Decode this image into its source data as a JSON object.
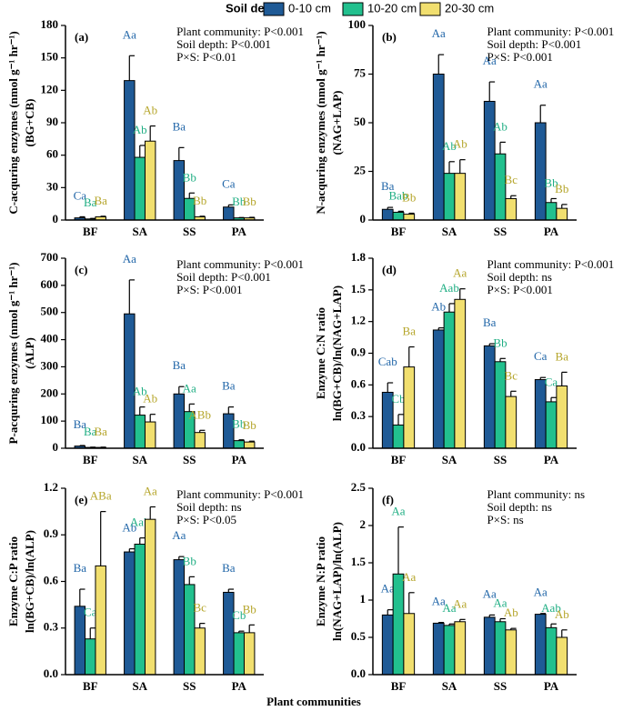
{
  "legend_title": "Soil depth",
  "xlabel": "Plant communities",
  "series": [
    {
      "name": "0-10 cm",
      "color": "#1f5a96",
      "label_color": "#2166a8"
    },
    {
      "name": "10-20 cm",
      "color": "#22c08e",
      "label_color": "#1fae83"
    },
    {
      "name": "20-30 cm",
      "color": "#f1df6f",
      "label_color": "#b5a52a"
    }
  ],
  "chart_data": [
    {
      "type": "bar",
      "panel": "(a)",
      "ylabel": [
        "C-acquring enzymes (nmol g⁻¹ hr⁻¹)",
        "(BG+CB)"
      ],
      "annotations": [
        "Plant community: P<0.001",
        "Soil depth: P<0.001",
        "P×S: P<0.01"
      ],
      "categories": [
        "BF",
        "SA",
        "SS",
        "PA"
      ],
      "ylim": [
        0,
        180
      ],
      "yticks": [
        0,
        30,
        60,
        90,
        120,
        150,
        180
      ],
      "series": [
        {
          "values": [
            2,
            129,
            55,
            12
          ],
          "errors": [
            1,
            23,
            12,
            2
          ],
          "labels": [
            "Ca",
            "Aa",
            "Ba",
            "Ca"
          ]
        },
        {
          "values": [
            1,
            58,
            20,
            2
          ],
          "errors": [
            0.5,
            11,
            5,
            0.3
          ],
          "labels": [
            "Ba",
            "Ab",
            "Bb",
            "Bb"
          ]
        },
        {
          "values": [
            3,
            73,
            3,
            2
          ],
          "errors": [
            0.5,
            14,
            0.5,
            0.5
          ],
          "labels": [
            "Ba",
            "Ab",
            "Bb",
            "Bb"
          ]
        }
      ]
    },
    {
      "type": "bar",
      "panel": "(b)",
      "ylabel": [
        "N-acquring enzymes (nmol g⁻¹ hr⁻¹)",
        "(NAG+LAP)"
      ],
      "annotations": [
        "Plant community: P<0.001",
        "Soil depth: P<0.001",
        "P×S: P<0.001"
      ],
      "categories": [
        "BF",
        "SA",
        "SS",
        "PA"
      ],
      "ylim": [
        0,
        100
      ],
      "yticks": [
        0,
        25,
        50,
        75,
        100
      ],
      "series": [
        {
          "values": [
            5.5,
            75,
            61,
            50
          ],
          "errors": [
            1,
            10,
            10,
            9
          ],
          "labels": [
            "Ba",
            "Aa",
            "Aa",
            "Aa"
          ]
        },
        {
          "values": [
            4,
            24,
            34,
            9
          ],
          "errors": [
            0.5,
            6,
            6,
            2
          ],
          "labels": [
            "Bab",
            "Ab",
            "Ab",
            "Bb"
          ]
        },
        {
          "values": [
            3,
            24,
            11,
            6
          ],
          "errors": [
            0.5,
            7,
            1.5,
            2
          ],
          "labels": [
            "Bb",
            "Ab",
            "Bc",
            "Bb"
          ]
        }
      ]
    },
    {
      "type": "bar",
      "panel": "(c)",
      "ylabel": [
        "P-acquring enzymes (nmol g⁻¹ hr⁻¹)",
        "(ALP)"
      ],
      "annotations": [
        "Plant community: P<0.001",
        "Soil depth: P<0.001",
        "P×S: P<0.001"
      ],
      "categories": [
        "BF",
        "SA",
        "SS",
        "PA"
      ],
      "ylim": [
        0,
        700
      ],
      "yticks": [
        0,
        100,
        200,
        300,
        400,
        500,
        600,
        700
      ],
      "series": [
        {
          "values": [
            8,
            495,
            200,
            127
          ],
          "errors": [
            2,
            125,
            27,
            25
          ],
          "labels": [
            "Ba",
            "Aa",
            "Ba",
            "Ba"
          ]
        },
        {
          "values": [
            3,
            122,
            135,
            28
          ],
          "errors": [
            1,
            30,
            28,
            3
          ],
          "labels": [
            "Ba",
            "Ab",
            "Aa",
            "Bb"
          ]
        },
        {
          "values": [
            3,
            97,
            58,
            23
          ],
          "errors": [
            1,
            28,
            8,
            3
          ],
          "labels": [
            "Ba",
            "Ab",
            "ABb",
            "Bb"
          ]
        }
      ]
    },
    {
      "type": "bar",
      "panel": "(d)",
      "ylabel": [
        "Enzyme C:N ratio",
        "ln(BG+CB)/ln(NAG+LAP)"
      ],
      "annotations": [
        "Plant community: P<0.001",
        "Soil depth: ns",
        "P×S: P<0.001"
      ],
      "categories": [
        "BF",
        "SA",
        "SS",
        "PA"
      ],
      "ylim": [
        0,
        1.8
      ],
      "yticks": [
        {
          "value": 0,
          "label": "0.0"
        },
        0.3,
        0.6,
        0.9,
        1.2,
        1.5,
        1.8
      ],
      "series": [
        {
          "values": [
            0.53,
            1.12,
            0.97,
            0.65
          ],
          "errors": [
            0.09,
            0.02,
            0.02,
            0.02
          ],
          "labels": [
            "Cab",
            "Ab",
            "Ba",
            "Ca"
          ]
        },
        {
          "values": [
            0.22,
            1.29,
            0.82,
            0.44
          ],
          "errors": [
            0.1,
            0.08,
            0.03,
            0.04
          ],
          "labels": [
            "Cb",
            "Aab",
            "Bb",
            "Ca"
          ]
        },
        {
          "values": [
            0.77,
            1.41,
            0.49,
            0.59
          ],
          "errors": [
            0.19,
            0.1,
            0.05,
            0.13
          ],
          "labels": [
            "Ba",
            "Aa",
            "Bc",
            "Ba"
          ]
        }
      ]
    },
    {
      "type": "bar",
      "panel": "(e)",
      "ylabel": [
        "Enzyme C:P ratio",
        "ln(BG+CB)/ln(ALP)"
      ],
      "annotations": [
        "Plant community: P<0.001",
        "Soil depth: ns",
        "P×S: P<0.05"
      ],
      "categories": [
        "BF",
        "SA",
        "SS",
        "PA"
      ],
      "ylim": [
        0,
        1.2
      ],
      "yticks": [
        {
          "value": 0,
          "label": "0.0"
        },
        0.3,
        0.6,
        0.9,
        1.2
      ],
      "series": [
        {
          "values": [
            0.44,
            0.79,
            0.74,
            0.53
          ],
          "errors": [
            0.11,
            0.02,
            0.02,
            0.02
          ],
          "labels": [
            "Ba",
            "Ab",
            "Aa",
            "Ba"
          ]
        },
        {
          "values": [
            0.23,
            0.84,
            0.58,
            0.27
          ],
          "errors": [
            0.07,
            0.04,
            0.05,
            0.01
          ],
          "labels": [
            "Ca",
            "Aab",
            "Bb",
            "Cb"
          ]
        },
        {
          "values": [
            0.7,
            1.0,
            0.3,
            0.27
          ],
          "errors": [
            0.35,
            0.08,
            0.03,
            0.05
          ],
          "labels": [
            "ABa",
            "Aa",
            "Bc",
            "Bb"
          ]
        }
      ]
    },
    {
      "type": "bar",
      "panel": "(f)",
      "ylabel": [
        "Enzyme N:P ratio",
        "ln(NAG+LAP)/ln(ALP)"
      ],
      "annotations": [
        "Plant community: ns",
        "Soil depth: ns",
        "P×S: ns"
      ],
      "categories": [
        "BF",
        "SA",
        "SS",
        "PA"
      ],
      "ylim": [
        0,
        2.5
      ],
      "yticks": [
        {
          "value": 0,
          "label": "0.0"
        },
        0.5,
        1.0,
        1.5,
        2.0,
        2.5
      ],
      "series": [
        {
          "values": [
            0.8,
            0.69,
            0.77,
            0.81
          ],
          "errors": [
            0.07,
            0.01,
            0.03,
            0.01
          ],
          "labels": [
            "Aa",
            "Aa",
            "Aa",
            "Aa"
          ]
        },
        {
          "values": [
            1.35,
            0.66,
            0.71,
            0.63
          ],
          "errors": [
            0.63,
            0.02,
            0.04,
            0.05
          ],
          "labels": [
            "Aa",
            "Aa",
            "Aa",
            "Aab"
          ]
        },
        {
          "values": [
            0.82,
            0.71,
            0.6,
            0.5
          ],
          "errors": [
            0.28,
            0.03,
            0.02,
            0.1
          ],
          "labels": [
            "Aa",
            "Aa",
            "Ab",
            "Ab"
          ]
        }
      ]
    }
  ]
}
